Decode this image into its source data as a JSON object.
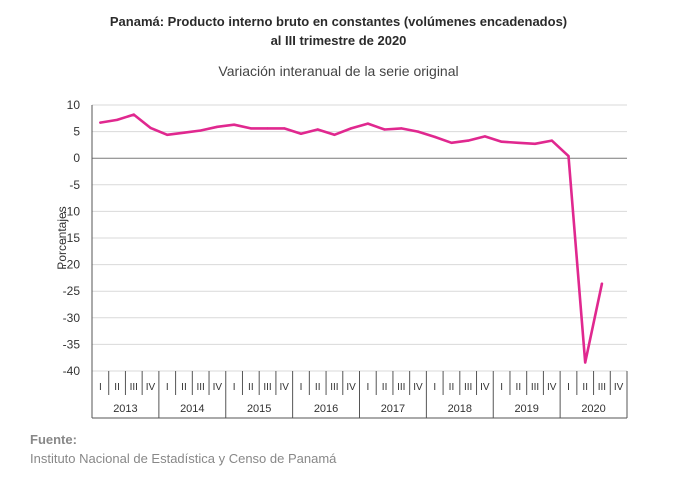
{
  "title_line1": "Panamá: Producto interno bruto en constantes (volúmenes encadenados)",
  "title_line2": "al III trimestre de 2020",
  "subtitle": "Variación interanual de la serie original",
  "source_label": "Fuente:",
  "source_text": "Instituto Nacional de Estadística y Censo de Panamá",
  "colors": {
    "line": "#e0288f",
    "grid": "#d9d9d9",
    "axis": "#555555"
  },
  "chart_data": {
    "type": "line",
    "ylabel": "Porcentajes",
    "ylim": [
      -40,
      10
    ],
    "yticks": [
      10,
      5,
      0,
      -5,
      -10,
      -15,
      -20,
      -25,
      -30,
      -35,
      -40
    ],
    "grid": true,
    "quarters": [
      "I",
      "II",
      "III",
      "IV"
    ],
    "years": [
      "2013",
      "2014",
      "2015",
      "2016",
      "2017",
      "2018",
      "2019",
      "2020"
    ],
    "categories": [
      "2013 I",
      "2013 II",
      "2013 III",
      "2013 IV",
      "2014 I",
      "2014 II",
      "2014 III",
      "2014 IV",
      "2015 I",
      "2015 II",
      "2015 III",
      "2015 IV",
      "2016 I",
      "2016 II",
      "2016 III",
      "2016 IV",
      "2017 I",
      "2017 II",
      "2017 III",
      "2017 IV",
      "2018 I",
      "2018 II",
      "2018 III",
      "2018 IV",
      "2019 I",
      "2019 II",
      "2019 III",
      "2019 IV",
      "2020 I",
      "2020 II",
      "2020 III"
    ],
    "values": [
      6.7,
      7.2,
      8.2,
      5.7,
      4.4,
      4.8,
      5.2,
      5.9,
      6.3,
      5.6,
      5.6,
      5.6,
      4.6,
      5.4,
      4.4,
      5.6,
      6.5,
      5.4,
      5.6,
      5.0,
      4.0,
      2.9,
      3.3,
      4.1,
      3.1,
      2.9,
      2.7,
      3.3,
      0.4,
      -38.4,
      -23.6
    ]
  }
}
